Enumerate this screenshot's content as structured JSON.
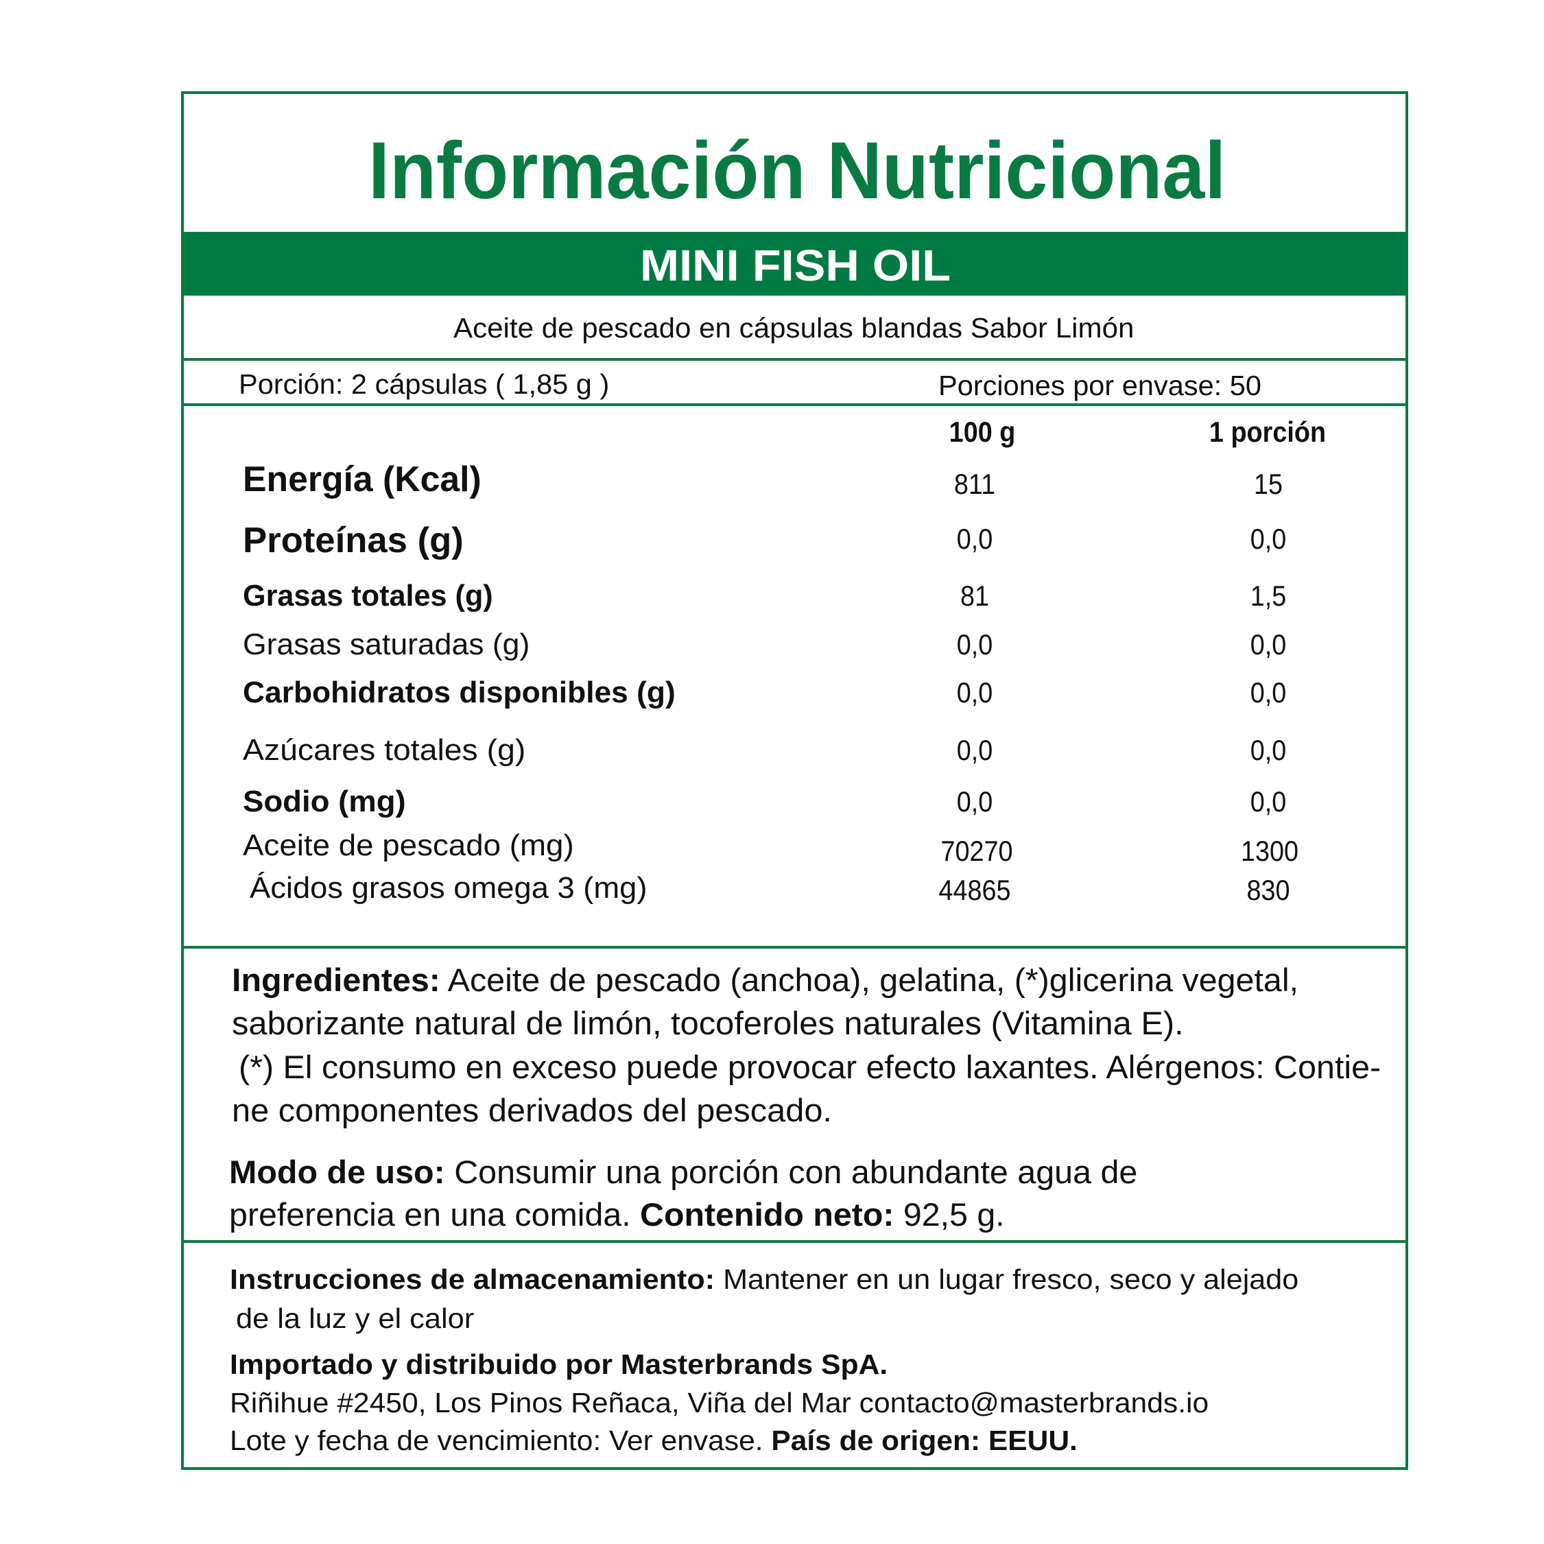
{
  "title": "Información Nutricional",
  "product_name": "MINI FISH OIL",
  "subtitle": "Aceite de pescado en cápsulas blandas Sabor Limón",
  "serving": {
    "portion": "Porción:  2 cápsulas ( 1,85 g )",
    "servings_per_container": "Porciones por envase: 50"
  },
  "table": {
    "headers": [
      "100 g",
      "1 porción"
    ],
    "rows": [
      {
        "label": "Energía (Kcal)",
        "per100": "811",
        "perServing": "15"
      },
      {
        "label": "Proteínas (g)",
        "per100": "0,0",
        "perServing": "0,0"
      },
      {
        "label": "Grasas totales (g)",
        "per100": "81",
        "perServing": "1,5"
      },
      {
        "label": "Grasas saturadas (g)",
        "per100": "0,0",
        "perServing": "0,0"
      },
      {
        "label": "Carbohidratos disponibles (g)",
        "per100": "0,0",
        "perServing": "0,0"
      },
      {
        "label": "Azúcares totales (g)",
        "per100": "0,0",
        "perServing": "0,0"
      },
      {
        "label": "Sodio (mg)",
        "per100": "0,0",
        "perServing": "0,0"
      },
      {
        "label": "Aceite de pescado (mg)",
        "per100": "70270",
        "perServing": "1300"
      },
      {
        "label": "Ácidos grasos omega 3 (mg)",
        "per100": "44865",
        "perServing": "830"
      }
    ]
  },
  "ingredients": {
    "heading": "Ingredientes:",
    "line1": " Aceite de pescado (anchoa), gelatina, (*)glicerina vegetal,",
    "line2": "saborizante natural de limón, tocoferoles naturales (Vitamina E).",
    "line3": "(*) El consumo en exceso puede provocar efecto laxantes. Alérgenos: Contie-",
    "line4": "ne componentes derivados del pescado."
  },
  "usage": {
    "heading": "Modo de uso:",
    "line1": " Consumir una porción con abundante agua de",
    "line2": "preferencia en  una comida. ",
    "net_heading": "Contenido neto:",
    "net_value": " 92,5 g."
  },
  "storage": {
    "heading": "Instrucciones de almacenamiento:",
    "line1": "  Mantener en un lugar fresco, seco y alejado",
    "line2": "de la luz y el calor"
  },
  "importer": {
    "heading": "Importado y distribuido por Masterbrands SpA.",
    "address": "Riñihue #2450, Los Pinos Reñaca, Viña del Mar contacto@masterbrands.io",
    "lot": "Lote y fecha de vencimiento: Ver envase.  ",
    "origin": "País de origen: EEUU."
  },
  "colors": {
    "brand_green": "#007a43",
    "text": "#111111"
  }
}
